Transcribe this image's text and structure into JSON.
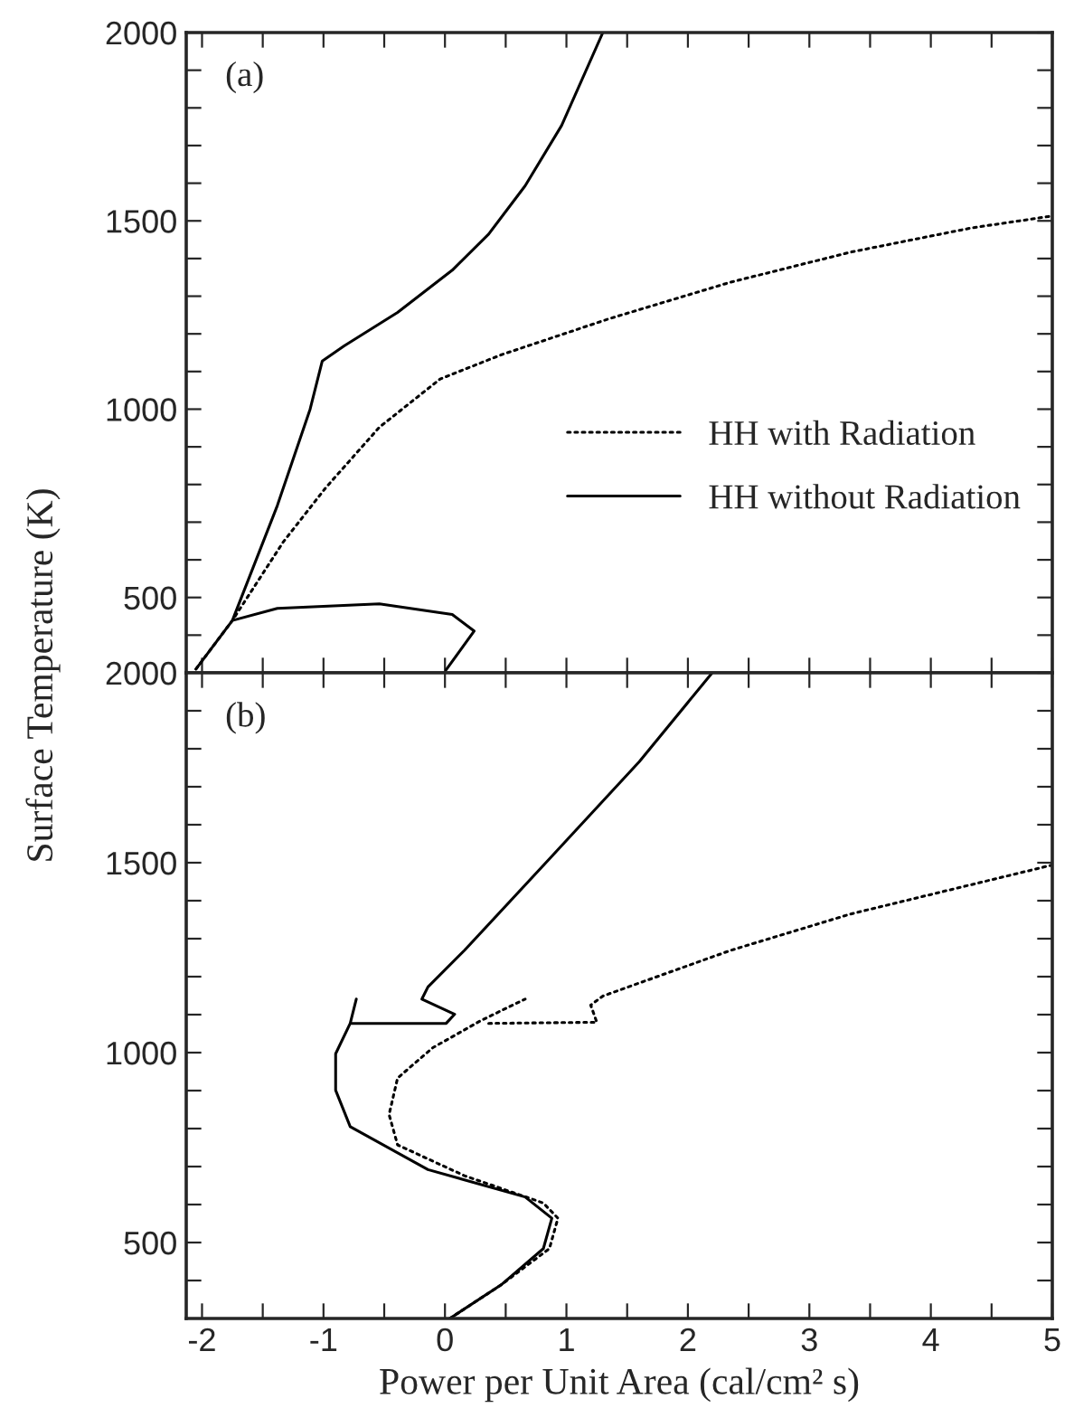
{
  "chart_data": [
    {
      "type": "line",
      "annotations": [
        "(a)"
      ],
      "ylabel": "Surface Temperature (K)",
      "legend": "right",
      "tick_labels": "y",
      "grid": false,
      "marker": "none",
      "xlim": [
        -2.13,
        5.0
      ],
      "ylim": [
        300,
        2000
      ],
      "xticks": [
        -2,
        {
          "value": -1.5,
          "label": null
        },
        -1,
        {
          "value": -0.5,
          "label": null
        },
        0,
        {
          "value": 0.5,
          "label": null
        },
        1,
        {
          "value": 1.5,
          "label": null
        },
        2,
        {
          "value": 2.5,
          "label": null
        },
        3,
        {
          "value": 3.5,
          "label": null
        },
        4,
        {
          "value": 4.5,
          "label": null
        },
        5
      ],
      "yticks": [
        {
          "value": 400,
          "label": null
        },
        500,
        {
          "value": 600,
          "label": null
        },
        {
          "value": 700,
          "label": null
        },
        {
          "value": 800,
          "label": null
        },
        {
          "value": 900,
          "label": null
        },
        1000,
        {
          "value": 1100,
          "label": null
        },
        {
          "value": 1200,
          "label": null
        },
        {
          "value": 1300,
          "label": null
        },
        {
          "value": 1400,
          "label": null
        },
        1500,
        {
          "value": 1600,
          "label": null
        },
        {
          "value": 1700,
          "label": null
        },
        {
          "value": 1800,
          "label": null
        },
        {
          "value": 1900,
          "label": null
        },
        2000
      ],
      "series": [
        {
          "name": "HH with Radiation",
          "color": "#000000",
          "line_style": "dotted",
          "x": [
            -2.05,
            -1.75,
            -1.33,
            -0.98,
            -0.54,
            -0.04,
            0.46,
            1.35,
            2.35,
            3.34,
            4.33,
            5.0
          ],
          "values": [
            310,
            439,
            648,
            792,
            952,
            1080,
            1144,
            1240,
            1337,
            1417,
            1481,
            1513
          ]
        },
        {
          "name": "HH without Radiation",
          "color": "#000000",
          "line_style": "solid",
          "x": [
            0.01,
            0.24,
            0.06,
            -0.54,
            -1.38,
            -1.75,
            null,
            -2.05,
            -1.75,
            -1.38,
            -1.11,
            -1.01,
            -0.83,
            -0.39,
            0.06,
            0.36,
            0.66,
            0.96,
            1.3
          ],
          "values": [
            308,
            411,
            455,
            483,
            471,
            439,
            null,
            310,
            439,
            744,
            1000,
            1128,
            1168,
            1257,
            1369,
            1465,
            1593,
            1753,
            2000
          ]
        }
      ]
    },
    {
      "type": "line",
      "annotations": [
        "(b)"
      ],
      "xlabel": "Power per Unit Area (cal/cm² s)",
      "grid": false,
      "marker": "none",
      "xlim": [
        -2.13,
        5.0
      ],
      "ylim": [
        300,
        2000
      ],
      "xticks": [
        -2,
        {
          "value": -1.5,
          "label": null
        },
        -1,
        {
          "value": -0.5,
          "label": null
        },
        0,
        {
          "value": 0.5,
          "label": null
        },
        1,
        {
          "value": 1.5,
          "label": null
        },
        2,
        {
          "value": 2.5,
          "label": null
        },
        3,
        {
          "value": 3.5,
          "label": null
        },
        4,
        {
          "value": 4.5,
          "label": null
        },
        5
      ],
      "yticks": [
        {
          "value": 400,
          "label": null
        },
        500,
        {
          "value": 600,
          "label": null
        },
        {
          "value": 700,
          "label": null
        },
        {
          "value": 800,
          "label": null
        },
        {
          "value": 900,
          "label": null
        },
        1000,
        {
          "value": 1100,
          "label": null
        },
        {
          "value": 1200,
          "label": null
        },
        {
          "value": 1300,
          "label": null
        },
        {
          "value": 1400,
          "label": null
        },
        1500,
        {
          "value": 1600,
          "label": null
        },
        {
          "value": 1700,
          "label": null
        },
        {
          "value": 1800,
          "label": null
        },
        {
          "value": 1900,
          "label": null
        },
        2000
      ],
      "series": [
        {
          "color": "#000000",
          "line_style": "dotted",
          "x": [
            0.04,
            0.46,
            0.86,
            0.93,
            0.81,
            0.16,
            -0.39,
            -0.46,
            -0.39,
            -0.1,
            0.3,
            0.66,
            null,
            0.36,
            1.25,
            1.2,
            1.3,
            2.35,
            3.34,
            5.0
          ],
          "values": [
            300,
            388,
            484,
            564,
            604,
            676,
            757,
            837,
            933,
            1013,
            1085,
            1141,
            null,
            1077,
            1080,
            1125,
            1149,
            1269,
            1365,
            1494
          ]
        },
        {
          "color": "#000000",
          "line_style": "solid",
          "x": [
            0.04,
            0.46,
            0.81,
            0.88,
            0.66,
            -0.14,
            -0.78,
            -0.9,
            -0.9,
            -0.78,
            -0.73,
            null,
            -0.78,
            0.01,
            0.08,
            -0.19,
            -0.14,
            0.16,
            0.86,
            1.6,
            2.2
          ],
          "values": [
            300,
            388,
            484,
            564,
            620,
            692,
            805,
            901,
            997,
            1077,
            1141,
            null,
            1077,
            1077,
            1101,
            1141,
            1173,
            1269,
            1510,
            1766,
            2000
          ]
        }
      ]
    }
  ]
}
